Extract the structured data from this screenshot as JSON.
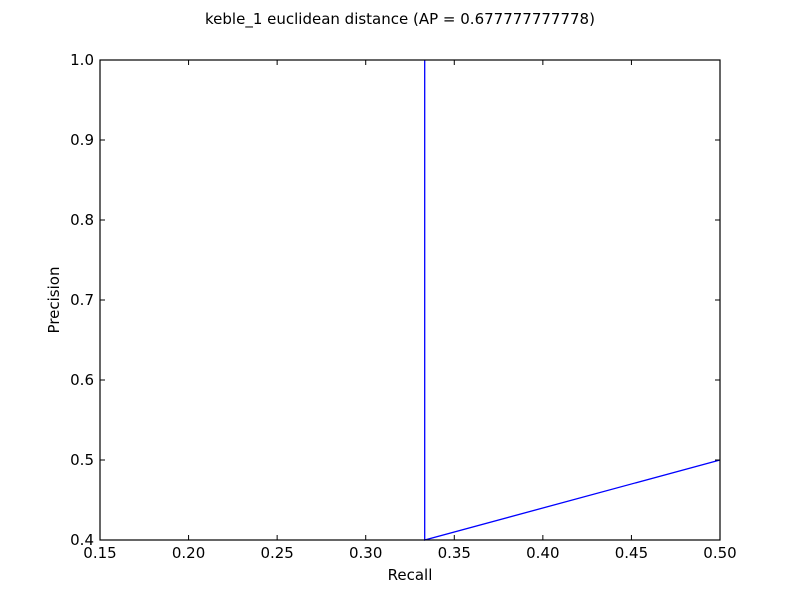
{
  "chart_data": {
    "type": "line",
    "title": "keble_1 euclidean distance  (AP = 0.677777777778)",
    "xlabel": "Recall",
    "ylabel": "Precision",
    "xlim": [
      0.15,
      0.5
    ],
    "ylim": [
      0.4,
      1.0
    ],
    "xticks": [
      "0.15",
      "0.20",
      "0.25",
      "0.30",
      "0.35",
      "0.40",
      "0.45",
      "0.50"
    ],
    "yticks": [
      "0.4",
      "0.5",
      "0.6",
      "0.7",
      "0.8",
      "0.9",
      "1.0"
    ],
    "grid": false,
    "series": [
      {
        "color": "#0000ff",
        "x": [
          0.3333,
          0.3333,
          0.5
        ],
        "y": [
          1.0,
          0.4,
          0.5
        ]
      }
    ]
  }
}
